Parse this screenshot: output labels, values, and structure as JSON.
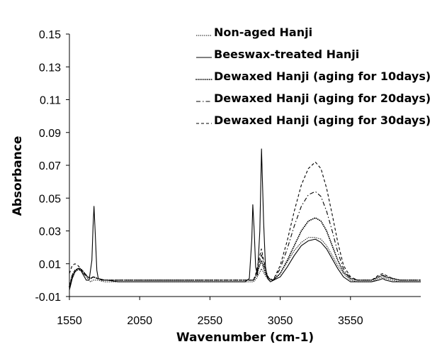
{
  "chart_data": {
    "type": "line",
    "title": "",
    "xlabel": "Wavenumber (cm-1)",
    "ylabel": "Absorbance",
    "xlim": [
      1550,
      4050
    ],
    "ylim": [
      -0.01,
      0.15
    ],
    "xticks": [
      1550,
      2050,
      2550,
      3050,
      3550
    ],
    "xtick_labels": [
      "1550",
      "2050",
      "2550",
      "3050",
      "3550"
    ],
    "yticks": [
      0.15,
      0.13,
      0.11,
      0.09,
      0.07,
      0.05,
      0.03,
      0.01,
      -0.01
    ],
    "ytick_labels": [
      "0.15",
      "0.13",
      "0.11",
      "0.09",
      "0.07",
      "0.05",
      "0.03",
      "0.01",
      "-0.01"
    ],
    "grid": false,
    "legend_position": "top-right",
    "series": [
      {
        "name": "Non-aged Hanji",
        "style": "dotted-fine",
        "x": [
          1550,
          1570,
          1590,
          1610,
          1630,
          1650,
          1680,
          1700,
          1720,
          1750,
          1800,
          1900,
          2050,
          2300,
          2550,
          2750,
          2860,
          2880,
          2900,
          2916,
          2930,
          2950,
          2970,
          3000,
          3050,
          3100,
          3150,
          3200,
          3250,
          3300,
          3340,
          3380,
          3420,
          3460,
          3500,
          3550,
          3600,
          3700,
          3750,
          3780,
          3800,
          3850,
          3900,
          4050
        ],
        "y": [
          -0.005,
          0.002,
          0.005,
          0.006,
          0.006,
          0.004,
          0.001,
          -0.001,
          0.0,
          0.0,
          -0.001,
          -0.001,
          -0.001,
          -0.001,
          -0.001,
          -0.001,
          -0.001,
          0.001,
          0.004,
          0.007,
          0.005,
          0.002,
          0.0,
          0.0,
          0.004,
          0.011,
          0.018,
          0.023,
          0.026,
          0.026,
          0.025,
          0.021,
          0.015,
          0.009,
          0.004,
          0.0,
          -0.001,
          -0.001,
          0.001,
          0.002,
          0.001,
          0.0,
          -0.001,
          -0.001
        ]
      },
      {
        "name": "Beeswax-treated Hanji",
        "style": "solid",
        "x": [
          1550,
          1570,
          1590,
          1610,
          1630,
          1650,
          1670,
          1690,
          1710,
          1718,
          1725,
          1733,
          1745,
          1755,
          1780,
          1820,
          1900,
          2050,
          2300,
          2550,
          2750,
          2800,
          2830,
          2848,
          2855,
          2865,
          2875,
          2888,
          2905,
          2917,
          2932,
          2945,
          2960,
          2980,
          3050,
          3100,
          3150,
          3200,
          3250,
          3300,
          3340,
          3380,
          3420,
          3460,
          3500,
          3550,
          3600,
          3700,
          3750,
          3780,
          3800,
          3850,
          4050
        ],
        "y": [
          -0.006,
          0.001,
          0.005,
          0.007,
          0.006,
          0.003,
          0.0,
          0.0,
          0.012,
          0.032,
          0.045,
          0.03,
          0.006,
          0.001,
          0.0,
          0.0,
          -0.001,
          -0.001,
          -0.001,
          -0.001,
          -0.001,
          -0.001,
          0.001,
          0.025,
          0.046,
          0.03,
          0.008,
          0.003,
          0.03,
          0.08,
          0.035,
          0.008,
          0.001,
          -0.001,
          0.002,
          0.008,
          0.015,
          0.021,
          0.024,
          0.025,
          0.023,
          0.019,
          0.013,
          0.007,
          0.002,
          -0.001,
          -0.001,
          -0.001,
          0.0,
          0.001,
          0.0,
          -0.001,
          -0.001
        ]
      },
      {
        "name": "Dewaxed Hanji (aging for 10days)",
        "style": "dotted-heavy",
        "x": [
          1550,
          1570,
          1590,
          1610,
          1630,
          1650,
          1680,
          1700,
          1720,
          1750,
          1800,
          1900,
          2050,
          2300,
          2550,
          2750,
          2860,
          2880,
          2900,
          2916,
          2930,
          2950,
          2970,
          3000,
          3050,
          3100,
          3150,
          3200,
          3250,
          3300,
          3340,
          3380,
          3420,
          3460,
          3500,
          3550,
          3600,
          3700,
          3750,
          3780,
          3800,
          3850,
          3900,
          4050
        ],
        "y": [
          -0.004,
          0.003,
          0.006,
          0.007,
          0.007,
          0.005,
          0.002,
          0.001,
          0.002,
          0.001,
          0.0,
          0.0,
          0.0,
          0.0,
          0.0,
          0.0,
          0.0,
          0.003,
          0.008,
          0.012,
          0.008,
          0.003,
          0.001,
          0.0,
          0.004,
          0.012,
          0.021,
          0.03,
          0.036,
          0.038,
          0.036,
          0.03,
          0.021,
          0.012,
          0.005,
          0.001,
          0.0,
          0.0,
          0.002,
          0.003,
          0.002,
          0.001,
          0.0,
          0.0
        ]
      },
      {
        "name": "Dewaxed Hanji (aging for 20days)",
        "style": "dash-dot",
        "x": [
          1550,
          1570,
          1590,
          1610,
          1630,
          1650,
          1680,
          1700,
          1720,
          1750,
          1800,
          1900,
          2050,
          2300,
          2550,
          2750,
          2860,
          2880,
          2900,
          2916,
          2930,
          2950,
          2970,
          3000,
          3050,
          3100,
          3150,
          3200,
          3250,
          3300,
          3340,
          3380,
          3420,
          3460,
          3500,
          3550,
          3600,
          3700,
          3750,
          3780,
          3800,
          3850,
          3900,
          4050
        ],
        "y": [
          -0.004,
          0.003,
          0.006,
          0.007,
          0.007,
          0.005,
          0.002,
          0.001,
          0.002,
          0.001,
          0.0,
          0.0,
          0.0,
          0.0,
          0.0,
          0.0,
          0.0,
          0.004,
          0.01,
          0.016,
          0.011,
          0.004,
          0.001,
          0.0,
          0.007,
          0.019,
          0.033,
          0.045,
          0.052,
          0.054,
          0.051,
          0.042,
          0.03,
          0.017,
          0.007,
          0.001,
          0.0,
          0.0,
          0.002,
          0.003,
          0.002,
          0.001,
          0.0,
          0.0
        ]
      },
      {
        "name": "Dewaxed Hanji (aging for 30days)",
        "style": "dashed",
        "x": [
          1550,
          1570,
          1590,
          1610,
          1630,
          1650,
          1680,
          1700,
          1720,
          1750,
          1800,
          1900,
          2050,
          2300,
          2550,
          2750,
          2860,
          2880,
          2900,
          2916,
          2930,
          2950,
          2970,
          3000,
          3050,
          3100,
          3150,
          3200,
          3250,
          3300,
          3340,
          3380,
          3420,
          3460,
          3500,
          3550,
          3600,
          3700,
          3750,
          3780,
          3800,
          3850,
          3900,
          4050
        ],
        "y": [
          0.004,
          0.009,
          0.01,
          0.009,
          0.007,
          0.004,
          0.002,
          0.001,
          0.002,
          0.001,
          0.0,
          0.0,
          0.0,
          0.0,
          0.0,
          0.0,
          0.0,
          0.005,
          0.013,
          0.019,
          0.013,
          0.005,
          0.001,
          0.0,
          0.009,
          0.024,
          0.042,
          0.058,
          0.068,
          0.072,
          0.068,
          0.056,
          0.04,
          0.023,
          0.009,
          0.002,
          0.0,
          0.0,
          0.003,
          0.004,
          0.003,
          0.001,
          0.0,
          0.0
        ]
      }
    ]
  }
}
